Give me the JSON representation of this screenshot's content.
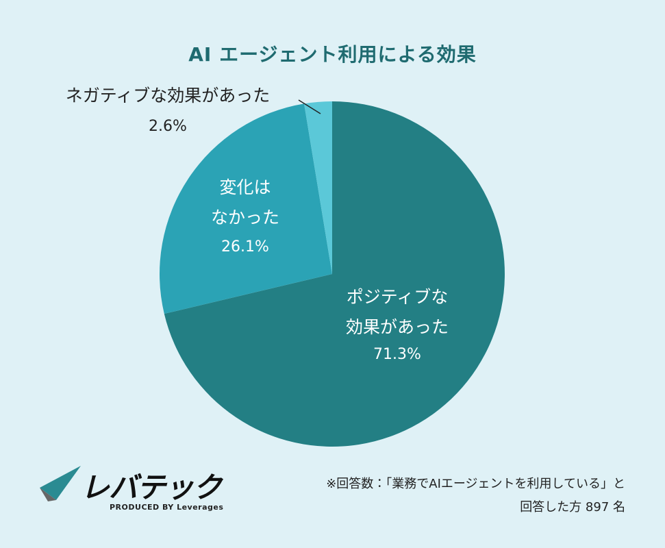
{
  "chart_data": {
    "type": "pie",
    "title": "AI エージェント利用による効果",
    "categories": [
      "ポジティブな\n効果があった",
      "変化は\nなかった",
      "ネガティブな効果があった"
    ],
    "values": [
      71.3,
      26.1,
      2.6
    ],
    "value_labels": [
      "71.3%",
      "26.1%",
      "2.6%"
    ],
    "colors": [
      "#237f84",
      "#2ba3b5",
      "#5bc8d8"
    ]
  },
  "note": "※回答数：「業務でAIエージェントを利用している」と\n回答した方 897 名",
  "footer": {
    "logo": "レバテック",
    "produced_by": "PRODUCED BY Leverages"
  }
}
